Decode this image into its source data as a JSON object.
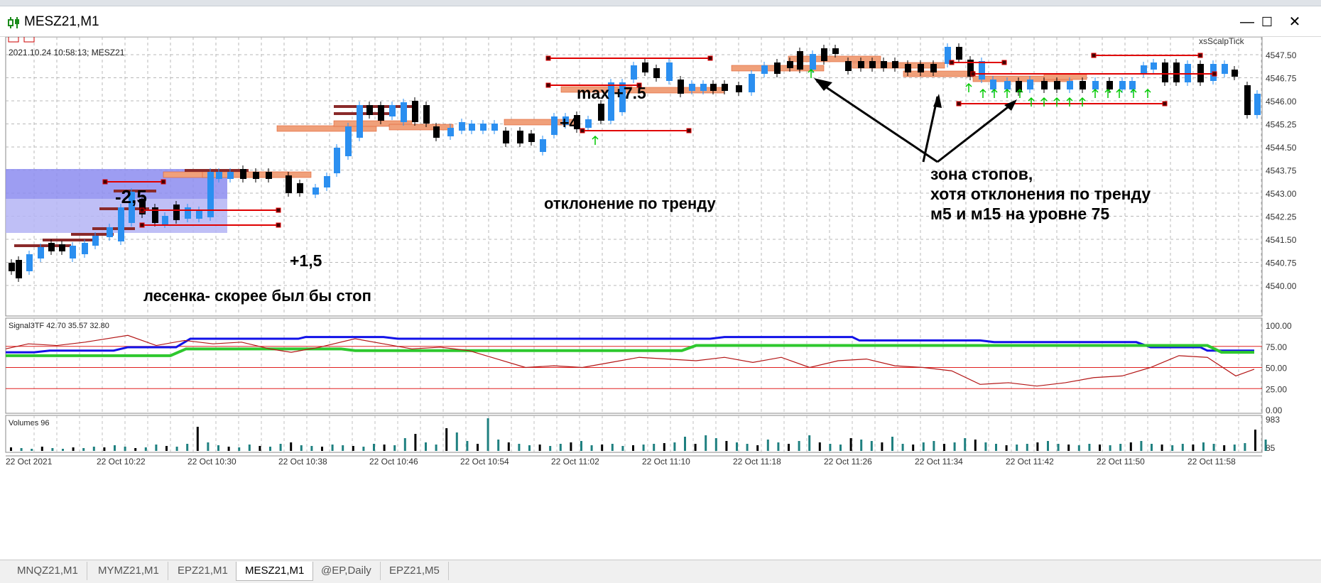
{
  "window": {
    "title": "MESZ21,M1",
    "minimize": "—",
    "maximize": "☐",
    "close": "✕"
  },
  "chart": {
    "info_line": "2021.10.24 10:58:13; MESZ21",
    "indicator_name": "xsScalpTick",
    "price_ticks": [
      "4547.50",
      "4546.75",
      "4546.00",
      "4545.25",
      "4544.50",
      "4543.75",
      "4543.00",
      "4542.25",
      "4541.50",
      "4540.75",
      "4540.00"
    ],
    "time_ticks": [
      "22 Oct 2021",
      "22 Oct 10:22",
      "22 Oct 10:30",
      "22 Oct 10:38",
      "22 Oct 10:46",
      "22 Oct 10:54",
      "22 Oct 11:02",
      "22 Oct 11:10",
      "22 Oct 11:18",
      "22 Oct 11:26",
      "22 Oct 11:34",
      "22 Oct 11:42",
      "22 Oct 11:50",
      "22 Oct 11:58"
    ]
  },
  "annotations": {
    "a1": "-2,5",
    "a2": "+1,5",
    "a3": "лесенка- скорее был бы стоп",
    "a4": "max +7.5",
    "a5": "+4",
    "a6": "отклонение по тренду",
    "a7": "зона стопов,",
    "a8": "хотя отклонения по тренду",
    "a9": "м5 и м15 на уровне 75"
  },
  "signal_panel": {
    "label": "Signal3TF 42.70 35.57 32.80",
    "ticks": [
      "100.00",
      "75.00",
      "50.00",
      "25.00",
      "0.00"
    ]
  },
  "volume_panel": {
    "label": "Volumes 96",
    "ticks": [
      "983",
      "85"
    ]
  },
  "tabs": [
    "MNQZ21,M1",
    "MYMZ21,M1",
    "EPZ21,M1",
    "MESZ21,M1",
    "@EP,Daily",
    "EPZ21,M5"
  ],
  "active_tab": "MESZ21,M1",
  "colors": {
    "bull": "#2b8ff0",
    "bear": "#000000",
    "signal_blue": "#1212e8",
    "signal_green": "#2ec82e",
    "signal_red": "#b31515",
    "level_red": "#e00000",
    "zone_orange": "#f0a07a",
    "zone_blue": "#8c8cf0",
    "volume_teal": "#1f8080",
    "arrow_green": "#00c800"
  }
}
